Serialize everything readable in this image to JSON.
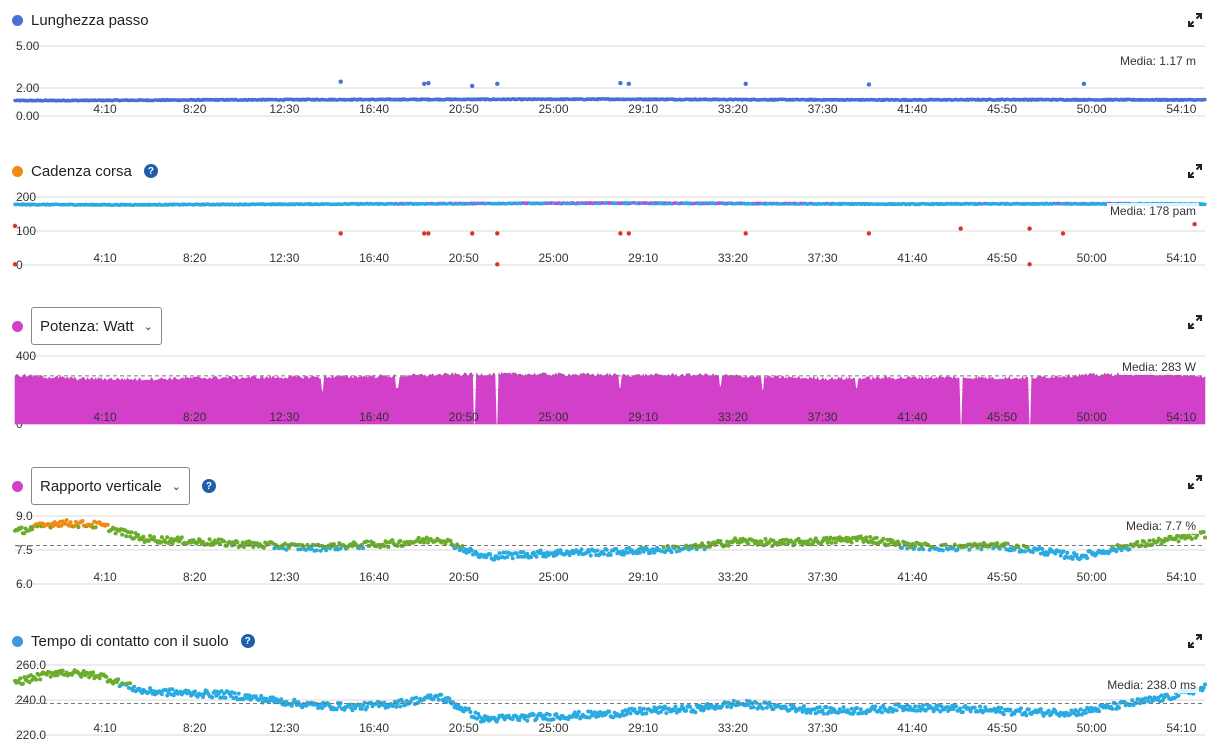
{
  "x_ticks": [
    "4:10",
    "8:20",
    "12:30",
    "16:40",
    "20:50",
    "25:00",
    "29:10",
    "33:20",
    "37:30",
    "41:40",
    "45:50",
    "50:00",
    "54:10"
  ],
  "colors": {
    "blue_series": "#4a6fd6",
    "cadence_series": "#29abe2",
    "power_fill": "#d23fc8",
    "green": "#6aad2c",
    "cyan": "#29abe2",
    "orange": "#f08a12",
    "red": "#d9342b",
    "grid": "#d8d8d8",
    "help_icon": "#1f5ea8"
  },
  "panels": [
    {
      "id": "stride",
      "title": "Lunghezza passo",
      "dot_color": "#4a6fd6",
      "has_help": false,
      "has_dropdown": false,
      "y_ticks": [
        "5.00",
        "2.00",
        "0.00"
      ],
      "average_label": "Media: 1.17 m"
    },
    {
      "id": "cadence",
      "title": "Cadenza corsa",
      "dot_color": "#f08a12",
      "has_help": true,
      "has_dropdown": false,
      "y_ticks": [
        "200",
        "100",
        "0"
      ],
      "average_label": "Media: 178 pam"
    },
    {
      "id": "power",
      "title": "Potenza: Watt",
      "dot_color": "#d23fc8",
      "has_help": false,
      "has_dropdown": true,
      "y_ticks": [
        "400",
        "200",
        "0"
      ],
      "average_label": "Media: 283 W"
    },
    {
      "id": "vratio",
      "title": "Rapporto verticale",
      "dot_color": "#d23fc8",
      "has_help": true,
      "has_dropdown": true,
      "y_ticks": [
        "9.0",
        "7.5",
        "6.0"
      ],
      "average_label": "Media: 7.7 %"
    },
    {
      "id": "gct",
      "title": "Tempo di contatto con il suolo",
      "dot_color": "#3d98e0",
      "has_help": true,
      "has_dropdown": false,
      "y_ticks": [
        "260.0",
        "240.0",
        "220.0"
      ],
      "average_label": "Media: 238.0 ms"
    }
  ],
  "chart_data": [
    {
      "type": "scatter",
      "title": "Lunghezza passo",
      "xlabel": "",
      "ylabel": "",
      "ylim": [
        0,
        5
      ],
      "average": 1.17,
      "series": [
        {
          "values": [
            1.1,
            1.12,
            1.15,
            1.17,
            1.18,
            1.19,
            1.2,
            1.18,
            1.16,
            1.15,
            1.17,
            1.16,
            1.15
          ]
        }
      ],
      "outliers": [
        [
          15.6,
          2.45
        ],
        [
          19.6,
          2.3
        ],
        [
          19.8,
          2.35
        ],
        [
          21.9,
          2.15
        ],
        [
          23.1,
          2.3
        ],
        [
          29.0,
          2.35
        ],
        [
          29.4,
          2.3
        ],
        [
          35.0,
          2.3
        ],
        [
          40.9,
          2.25
        ],
        [
          51.2,
          2.3
        ]
      ],
      "grid": true
    },
    {
      "type": "scatter",
      "title": "Cadenza corsa",
      "xlabel": "",
      "ylabel": "",
      "ylim": [
        0,
        200
      ],
      "average": 178,
      "series": [
        {
          "values": [
            178,
            177,
            178,
            179,
            180,
            181,
            182,
            181,
            180,
            179,
            180,
            180,
            179
          ]
        }
      ],
      "outliers": [
        [
          15.6,
          93
        ],
        [
          19.6,
          93
        ],
        [
          19.8,
          93
        ],
        [
          21.9,
          93
        ],
        [
          23.1,
          93
        ],
        [
          29.0,
          93
        ],
        [
          29.4,
          93
        ],
        [
          35.0,
          93
        ],
        [
          40.9,
          93
        ],
        [
          45.3,
          107
        ],
        [
          48.6,
          107
        ],
        [
          50.2,
          93
        ],
        [
          23.1,
          2
        ],
        [
          48.6,
          2
        ],
        [
          56.5,
          120
        ],
        [
          0.0,
          115
        ],
        [
          0.0,
          2
        ]
      ],
      "grid": true
    },
    {
      "type": "area",
      "title": "Potenza: Watt",
      "xlabel": "",
      "ylabel": "",
      "ylim": [
        0,
        400
      ],
      "average": 283,
      "series": [
        {
          "values": [
            285,
            265,
            262,
            270,
            272,
            275,
            280,
            290,
            292,
            290,
            285,
            288,
            275,
            265,
            270,
            272,
            268,
            285,
            295,
            278
          ]
        }
      ],
      "dips": [
        [
          14.7,
          190
        ],
        [
          18.3,
          210
        ],
        [
          22.0,
          0
        ],
        [
          23.1,
          0
        ],
        [
          29.0,
          210
        ],
        [
          33.8,
          220
        ],
        [
          35.8,
          200
        ],
        [
          40.3,
          210
        ],
        [
          45.3,
          0
        ],
        [
          48.6,
          0
        ]
      ],
      "grid": true
    },
    {
      "type": "scatter",
      "title": "Rapporto verticale",
      "xlabel": "",
      "ylabel": "",
      "ylim": [
        6.0,
        9.0
      ],
      "average": 7.7,
      "series": [
        {
          "values": [
            8.3,
            8.7,
            8.6,
            8.0,
            7.9,
            7.8,
            7.7,
            7.6,
            7.7,
            7.8,
            8.0,
            7.2,
            7.3,
            7.4,
            7.4,
            7.5,
            7.6,
            7.9,
            7.8,
            7.9,
            8.0,
            7.7,
            7.6,
            7.7,
            7.5,
            7.2,
            7.6,
            7.9,
            8.2
          ]
        }
      ],
      "grid": true
    },
    {
      "type": "scatter",
      "title": "Tempo di contatto con il suolo",
      "xlabel": "",
      "ylabel": "",
      "ylim": [
        220,
        260
      ],
      "average": 238.0,
      "series": [
        {
          "values": [
            250,
            256,
            254,
            245,
            244,
            243,
            240,
            237,
            236,
            238,
            242,
            229,
            230,
            231,
            232,
            234,
            235,
            238,
            236,
            234,
            234,
            236,
            235,
            234,
            233,
            233,
            237,
            241,
            247
          ]
        }
      ],
      "grid": true
    }
  ]
}
